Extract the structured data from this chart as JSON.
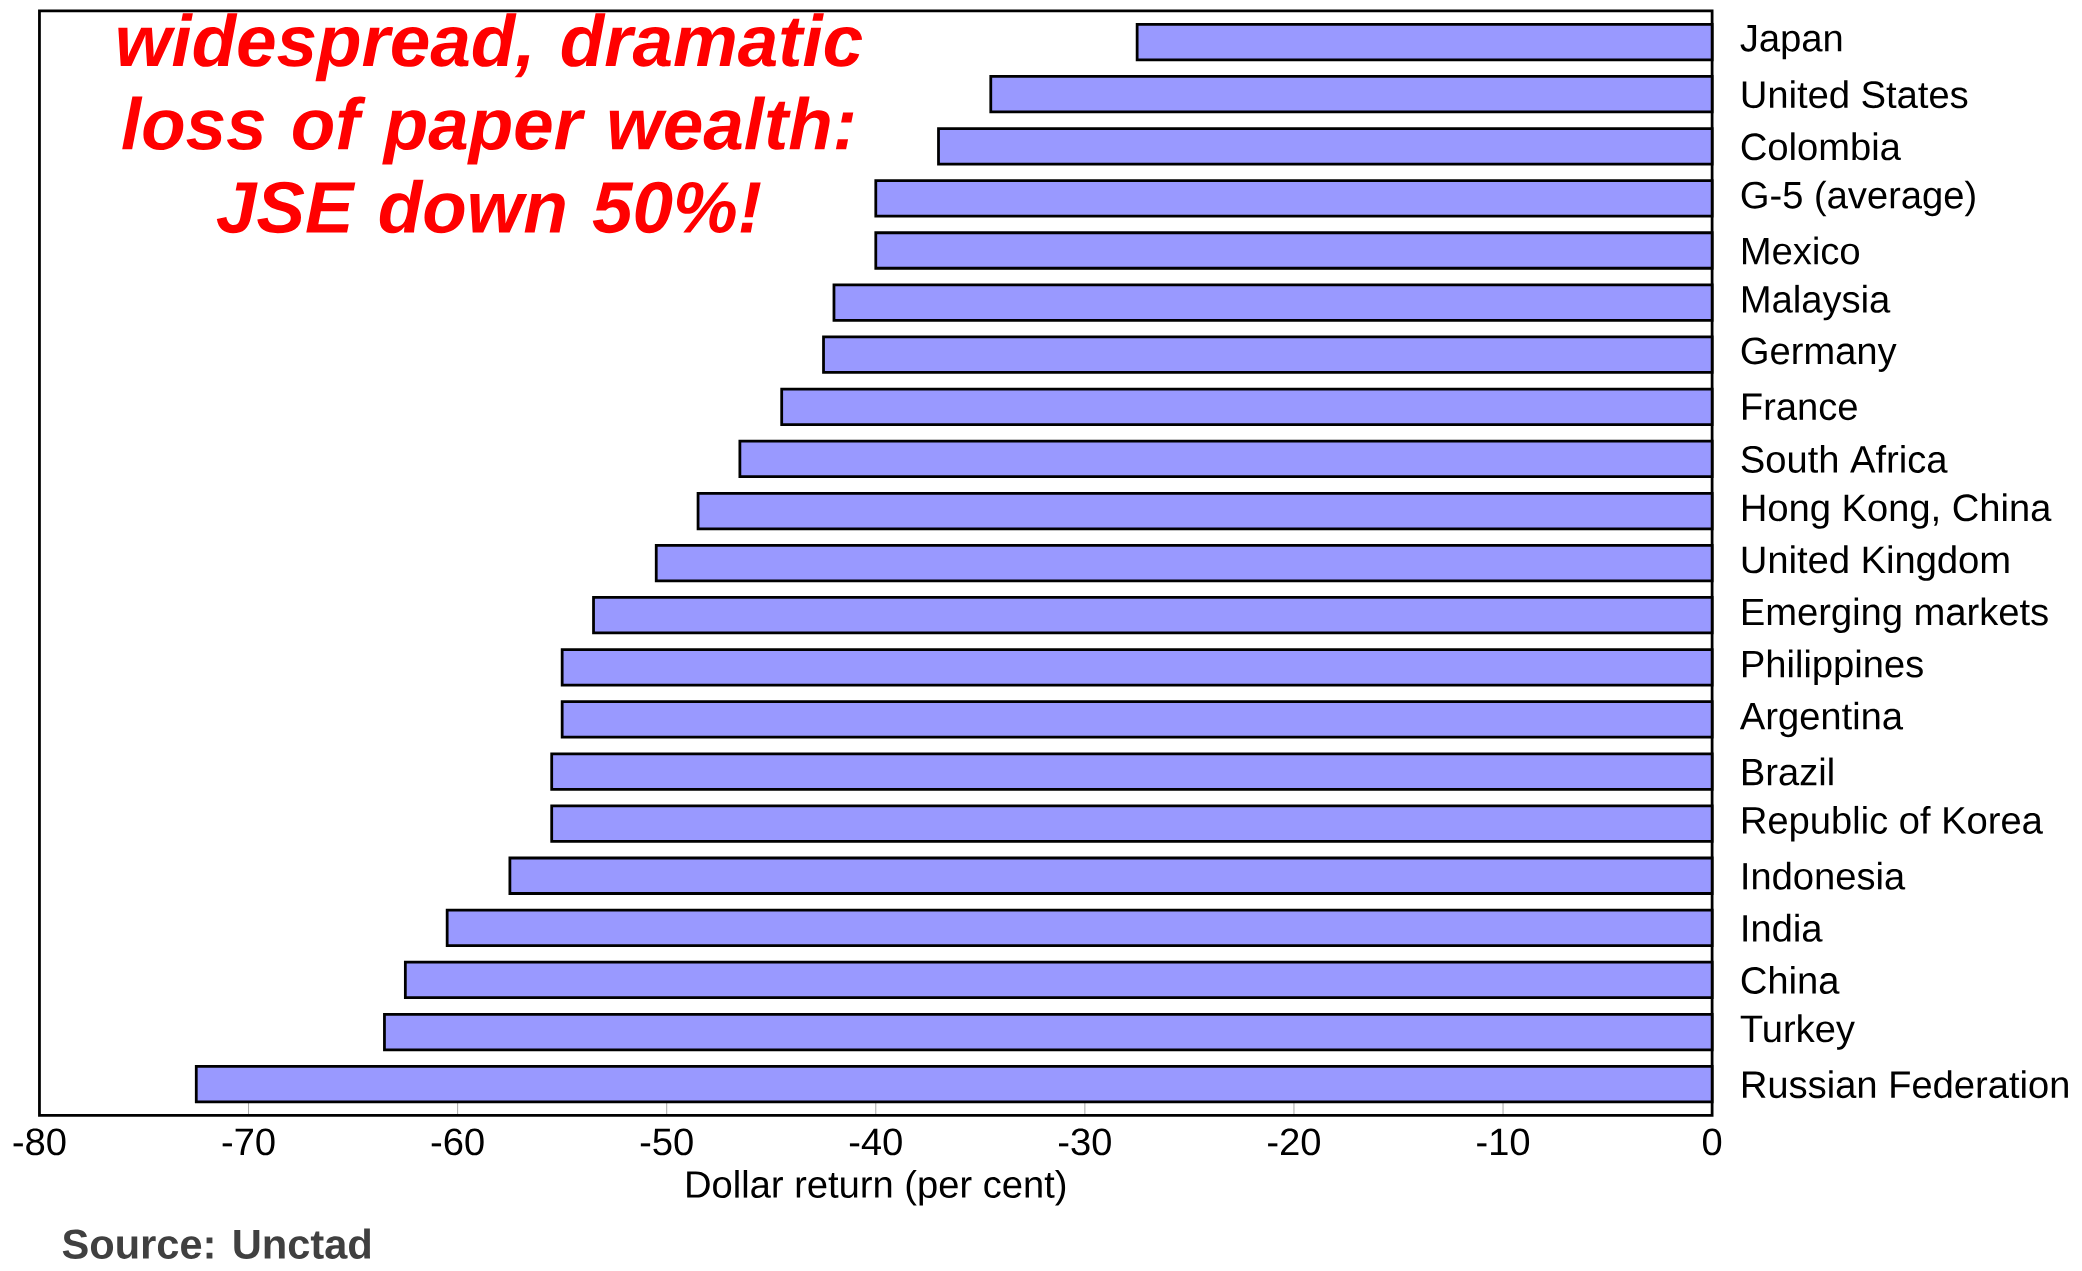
{
  "chart_data": {
    "type": "bar",
    "orientation": "horizontal",
    "title": "widespread, dramatic loss of paper wealth: JSE down 50%!",
    "xlabel": "Dollar return (per cent)",
    "categories": [
      "Japan",
      "United States",
      "Colombia",
      "G-5 (average)",
      "Mexico",
      "Malaysia",
      "Germany",
      "France",
      "South Africa",
      "Hong Kong, China",
      "United Kingdom",
      "Emerging markets",
      "Philippines",
      "Argentina",
      "Brazil",
      "Republic of Korea",
      "Indonesia",
      "India",
      "China",
      "Turkey",
      "Russian Federation"
    ],
    "values": [
      -27.5,
      -34.5,
      -37,
      -40,
      -40,
      -42,
      -42.5,
      -44.5,
      -46.5,
      -48.5,
      -50.5,
      -53.5,
      -55,
      -55,
      -55.5,
      -55.5,
      -57.5,
      -60.5,
      -62.5,
      -63.5,
      -72.5
    ],
    "color": "#9999ff",
    "xlim": [
      -80,
      0
    ],
    "xticks": [
      -80,
      -70,
      -60,
      -50,
      -40,
      -30,
      -20,
      -10,
      0
    ],
    "grid": false,
    "annotations": [
      "Source: Unctad"
    ]
  }
}
